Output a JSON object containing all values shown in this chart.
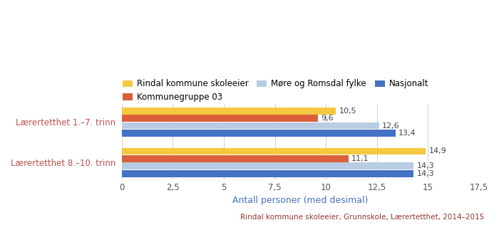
{
  "categories": [
    "Lærertetthet 1.–7. trinn",
    "Lærertetthet 8.–10. trinn"
  ],
  "series": [
    {
      "label": "Rindal kommune skoleeier",
      "color": "#f5c842",
      "values": [
        10.5,
        14.9
      ]
    },
    {
      "label": "Kommunegruppe 03",
      "color": "#d9603a",
      "values": [
        9.6,
        11.1
      ]
    },
    {
      "label": "Møre og Romsdal fylke",
      "color": "#b8cce4",
      "values": [
        12.6,
        14.3
      ]
    },
    {
      "label": "Nasjonalt",
      "color": "#4472c4",
      "values": [
        13.4,
        14.3
      ]
    }
  ],
  "xlabel": "Antall personer (med desimal)",
  "xlim": [
    0,
    17.5
  ],
  "xticks": [
    0,
    2.5,
    5,
    7.5,
    10,
    12.5,
    15,
    17.5
  ],
  "xtick_labels": [
    "0",
    "2,5",
    "5",
    "7,5",
    "10",
    "12,5",
    "15",
    "17,5"
  ],
  "footnote": "Rindal kommune skoleeier, Grunnskole, Lærertetthet, 2014–2015",
  "bar_height": 0.17,
  "xlabel_color": "#4472c4",
  "ytick_color": "#c0504d",
  "footnote_color": "#943634",
  "value_label_fontsize": 8,
  "axis_label_fontsize": 9,
  "tick_label_fontsize": 8.5,
  "legend_fontsize": 8.5
}
